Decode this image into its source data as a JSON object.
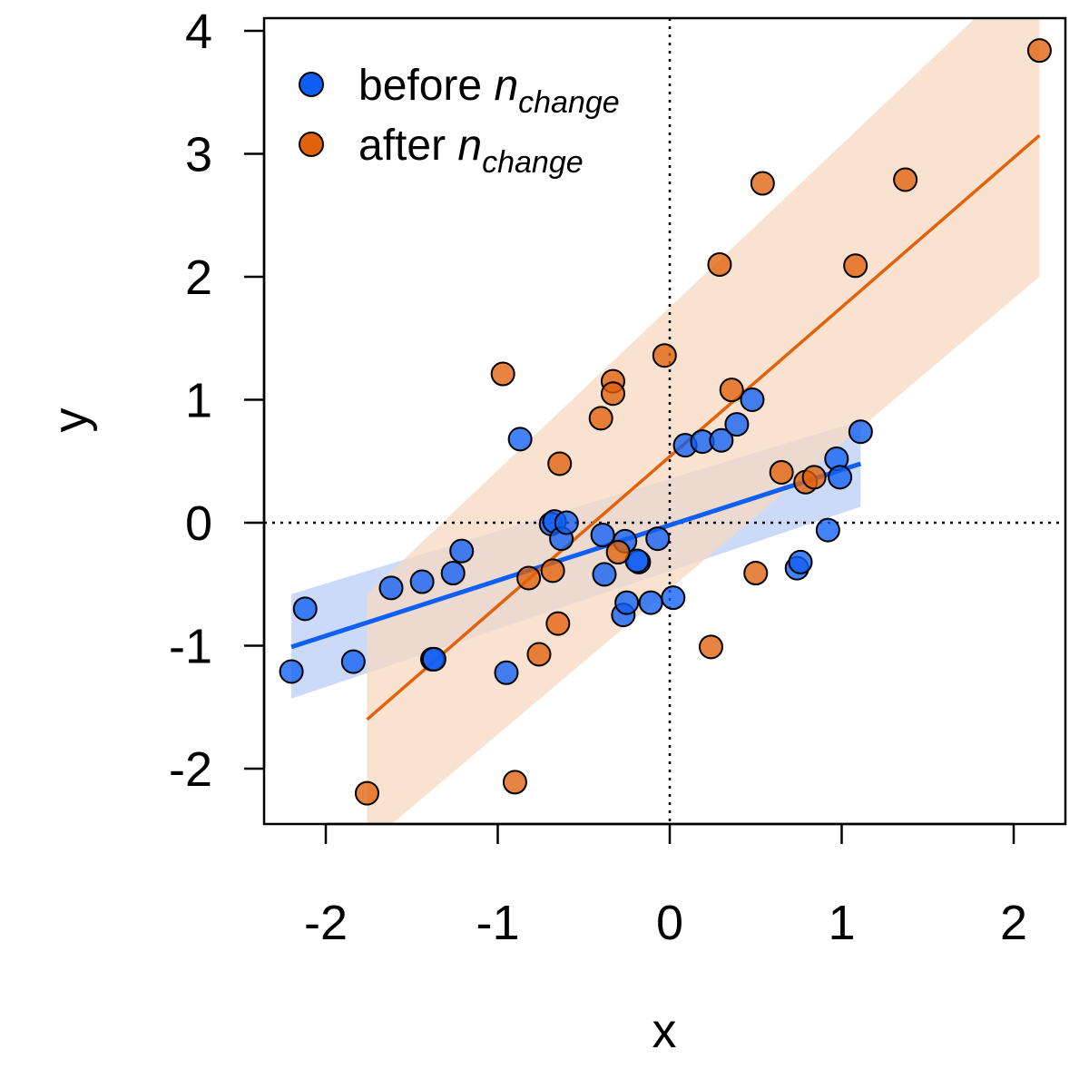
{
  "chart_data": {
    "type": "scatter",
    "title": "",
    "xlabel": "x",
    "ylabel": "y",
    "xlim": [
      -2.3,
      2.3
    ],
    "ylim": [
      -2.45,
      4.1
    ],
    "x_ticks": [
      -2,
      -1,
      0,
      1,
      2
    ],
    "x_tick_labels": [
      "-2",
      "-1",
      "0",
      "1",
      "2"
    ],
    "y_ticks": [
      -2,
      -1,
      0,
      1,
      2,
      3,
      4
    ],
    "y_tick_labels": [
      "-2",
      "-1",
      "0",
      "1",
      "2",
      "3",
      "4"
    ],
    "grid": false,
    "reference_lines": {
      "x": 0,
      "y": 0,
      "style": "dotted"
    },
    "legend": {
      "position": "top-left",
      "entries": [
        {
          "text": "before ",
          "italic": "n",
          "subscript": "change",
          "color": "#0f5ff5"
        },
        {
          "text": "after ",
          "italic": "n",
          "subscript": "change",
          "color": "#e2620b"
        }
      ]
    },
    "series": [
      {
        "name": "before n change",
        "color": "#0f5ff5",
        "band_color": "#b9cef7",
        "points": [
          [
            -2.2,
            -1.21
          ],
          [
            -2.12,
            -0.7
          ],
          [
            -1.84,
            -1.13
          ],
          [
            -1.62,
            -0.53
          ],
          [
            -1.44,
            -0.48
          ],
          [
            -1.38,
            -1.11
          ],
          [
            -1.37,
            -1.11
          ],
          [
            -1.26,
            -0.41
          ],
          [
            -1.21,
            -0.23
          ],
          [
            -0.95,
            -1.22
          ],
          [
            -0.87,
            0.68
          ],
          [
            -0.69,
            -0.01
          ],
          [
            -0.67,
            0.01
          ],
          [
            -0.63,
            -0.13
          ],
          [
            -0.6,
            0.0
          ],
          [
            -0.39,
            -0.1
          ],
          [
            -0.38,
            -0.42
          ],
          [
            -0.26,
            -0.15
          ],
          [
            -0.27,
            -0.75
          ],
          [
            -0.25,
            -0.65
          ],
          [
            -0.18,
            -0.32
          ],
          [
            -0.19,
            -0.31
          ],
          [
            -0.11,
            -0.65
          ],
          [
            -0.07,
            -0.13
          ],
          [
            0.02,
            -0.61
          ],
          [
            0.09,
            0.63
          ],
          [
            0.19,
            0.66
          ],
          [
            0.3,
            0.67
          ],
          [
            0.39,
            0.8
          ],
          [
            0.48,
            1.0
          ],
          [
            0.74,
            -0.37
          ],
          [
            0.76,
            -0.32
          ],
          [
            0.92,
            -0.06
          ],
          [
            0.97,
            0.52
          ],
          [
            0.99,
            0.37
          ],
          [
            1.11,
            0.74
          ]
        ],
        "fit_line": {
          "x": [
            -2.2,
            1.11
          ],
          "y": [
            -1.01,
            0.48
          ]
        },
        "band": {
          "x": [
            -2.2,
            1.11
          ],
          "upper": [
            -0.58,
            0.83
          ],
          "lower": [
            -1.43,
            0.13
          ]
        }
      },
      {
        "name": "after n change",
        "color": "#e2620b",
        "band_color": "#f7d8c0",
        "points": [
          [
            -1.76,
            -2.2
          ],
          [
            -0.97,
            1.21
          ],
          [
            -0.9,
            -2.11
          ],
          [
            -0.82,
            -0.45
          ],
          [
            -0.76,
            -1.07
          ],
          [
            -0.68,
            -0.39
          ],
          [
            -0.65,
            -0.82
          ],
          [
            -0.64,
            0.48
          ],
          [
            -0.4,
            0.85
          ],
          [
            -0.33,
            1.15
          ],
          [
            -0.33,
            1.05
          ],
          [
            -0.3,
            -0.24
          ],
          [
            -0.03,
            1.36
          ],
          [
            0.24,
            -1.01
          ],
          [
            0.29,
            2.1
          ],
          [
            0.36,
            1.08
          ],
          [
            0.5,
            -0.41
          ],
          [
            0.54,
            2.76
          ],
          [
            0.65,
            0.41
          ],
          [
            0.79,
            0.33
          ],
          [
            0.84,
            0.37
          ],
          [
            1.08,
            2.09
          ],
          [
            1.37,
            2.79
          ],
          [
            2.15,
            3.84
          ]
        ],
        "fit_line": {
          "x": [
            -1.76,
            2.15
          ],
          "y": [
            -1.6,
            3.15
          ]
        },
        "band": {
          "x": [
            -1.76,
            2.15
          ],
          "upper": [
            -0.58,
            4.6
          ],
          "lower": [
            -2.62,
            2.0
          ]
        }
      }
    ]
  }
}
